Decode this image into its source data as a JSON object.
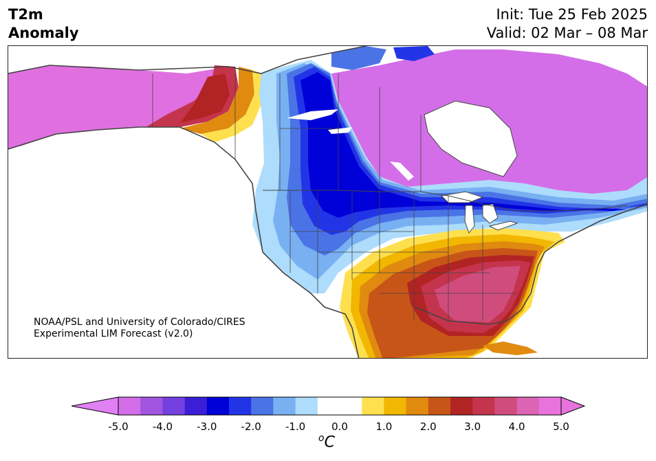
{
  "header": {
    "variable": "T2m",
    "subtitle": "Anomaly",
    "init": "Init: Tue 25 Feb 2025",
    "valid": "Valid: 02 Mar – 08 Mar"
  },
  "credit": {
    "line1": "NOAA/PSL and University of Colorado/CIRES",
    "line2": "Experimental LIM Forecast (v2.0)"
  },
  "colorbar": {
    "unit_base": "C",
    "unit_sup": "o",
    "tick_labels": [
      "-5.0",
      "-4.0",
      "-3.0",
      "-2.0",
      "-1.0",
      "0.0",
      "1.0",
      "2.0",
      "3.0",
      "4.0",
      "5.0"
    ],
    "colors": [
      "#d36ee8",
      "#a155e0",
      "#7540e0",
      "#3a1fd6",
      "#0000d8",
      "#2235e6",
      "#4a73e6",
      "#78b0f2",
      "#addcfc",
      "#ffffff",
      "#ffffff",
      "#fee04f",
      "#f2b700",
      "#e08a10",
      "#c85518",
      "#b22323",
      "#c4344c",
      "#d04c7c",
      "#dc64b4",
      "#e873dc"
    ],
    "under_color": "#e080f2",
    "over_color": "#e873dc"
  },
  "map": {
    "colors": {
      "ocean": "#ffffff",
      "magenta": "#e070e0",
      "violet": "#d36ee8",
      "purple": "#7540e0",
      "deepblue": "#0000d8",
      "blue": "#2235e6",
      "midblue": "#4a73e6",
      "lightblue": "#78b0f2",
      "paleblue": "#addcfc",
      "yellow": "#fee04f",
      "gold": "#f2b700",
      "orange": "#e08a10",
      "rust": "#c85518",
      "red": "#b22323",
      "crimson": "#c4344c",
      "pink": "#d04c7c",
      "borders": "#444444"
    }
  }
}
